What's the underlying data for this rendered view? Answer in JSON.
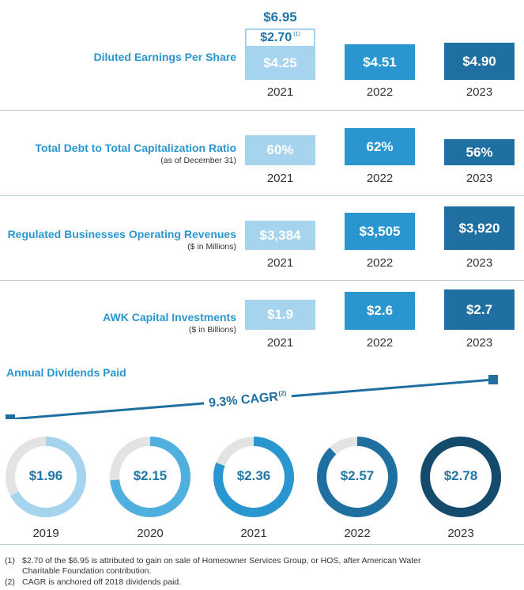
{
  "colors": {
    "y2021": "#a6d4ef",
    "y2022": "#2a96cf",
    "y2023": "#1f6fa0",
    "title": "#2a96cf",
    "value_text": "#1f76a7",
    "donut_track": "#e3e3e3"
  },
  "eps": {
    "title": "Diluted Earnings Per Share",
    "total_2021": "$6.95",
    "gain_2021": "$2.70",
    "gain_note": "(1)"
  },
  "debt": {
    "title": "Total Debt to Total Capitalization Ratio",
    "sub": "(as of December 31)"
  },
  "revenue": {
    "title": "Regulated Businesses Operating Revenues",
    "sub": "($ in Millions)"
  },
  "capex": {
    "title": "AWK Capital Investments",
    "sub": "($ in Billions)"
  },
  "dividends": {
    "title": "Annual Dividends Paid",
    "cagr": "9.3% CAGR",
    "cagr_note": "(2)"
  },
  "footnotes": [
    {
      "num": "(1)",
      "line1": "$2.70 of the $6.95 is attributed to gain on sale of Homeowner Services Group, or HOS, after American Water",
      "line2": "Charitable Foundation contribution."
    },
    {
      "num": "(2)",
      "line1": "CAGR is anchored off 2018 dividends paid.",
      "line2": ""
    }
  ],
  "chart_data": [
    {
      "type": "bar",
      "title": "Diluted Earnings Per Share",
      "categories": [
        "2021",
        "2022",
        "2023"
      ],
      "values": [
        4.25,
        4.51,
        4.9
      ],
      "labels": [
        "$4.25",
        "$4.51",
        "$4.90"
      ],
      "stacked_extra_2021": 2.7,
      "total_2021": 6.95
    },
    {
      "type": "bar",
      "title": "Total Debt to Total Capitalization Ratio",
      "categories": [
        "2021",
        "2022",
        "2023"
      ],
      "values": [
        60,
        62,
        56
      ],
      "labels": [
        "60%",
        "62%",
        "56%"
      ]
    },
    {
      "type": "bar",
      "title": "Regulated Businesses Operating Revenues",
      "categories": [
        "2021",
        "2022",
        "2023"
      ],
      "values": [
        3384,
        3505,
        3920
      ],
      "labels": [
        "$3,384",
        "$3,505",
        "$3,920"
      ]
    },
    {
      "type": "bar",
      "title": "AWK Capital Investments",
      "categories": [
        "2021",
        "2022",
        "2023"
      ],
      "values": [
        1.9,
        2.6,
        2.7
      ],
      "labels": [
        "$1.9",
        "$2.6",
        "$2.7"
      ]
    },
    {
      "type": "pie",
      "title": "Annual Dividends Paid",
      "categories": [
        "2019",
        "2020",
        "2021",
        "2022",
        "2023"
      ],
      "values": [
        1.96,
        2.15,
        2.36,
        2.57,
        2.78
      ],
      "labels": [
        "$1.96",
        "$2.15",
        "$2.36",
        "$2.57",
        "$2.78"
      ],
      "colors": [
        "#a6d4ef",
        "#4fb0e0",
        "#2a96cf",
        "#1f6fa0",
        "#144a6b"
      ]
    }
  ]
}
